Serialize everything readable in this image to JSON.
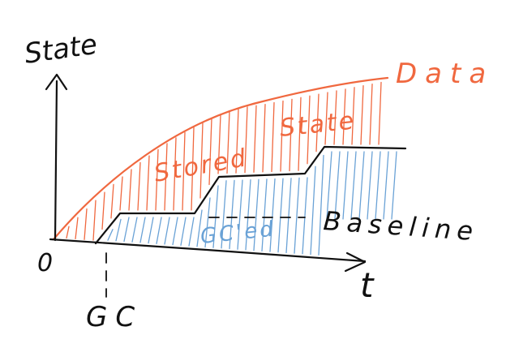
{
  "labels": {
    "y_axis": "State",
    "x_axis": "t",
    "origin": "0",
    "gc_marker": "GC",
    "data_curve": "Data",
    "stored_state_word1": "Stored",
    "stored_state_word2": "State",
    "baseline": "Baseline",
    "gced": "GC'ed"
  },
  "colors": {
    "ink": "#111111",
    "data": "#f0683f",
    "gced": "#6aa2d6",
    "background": "#ffffff"
  }
}
